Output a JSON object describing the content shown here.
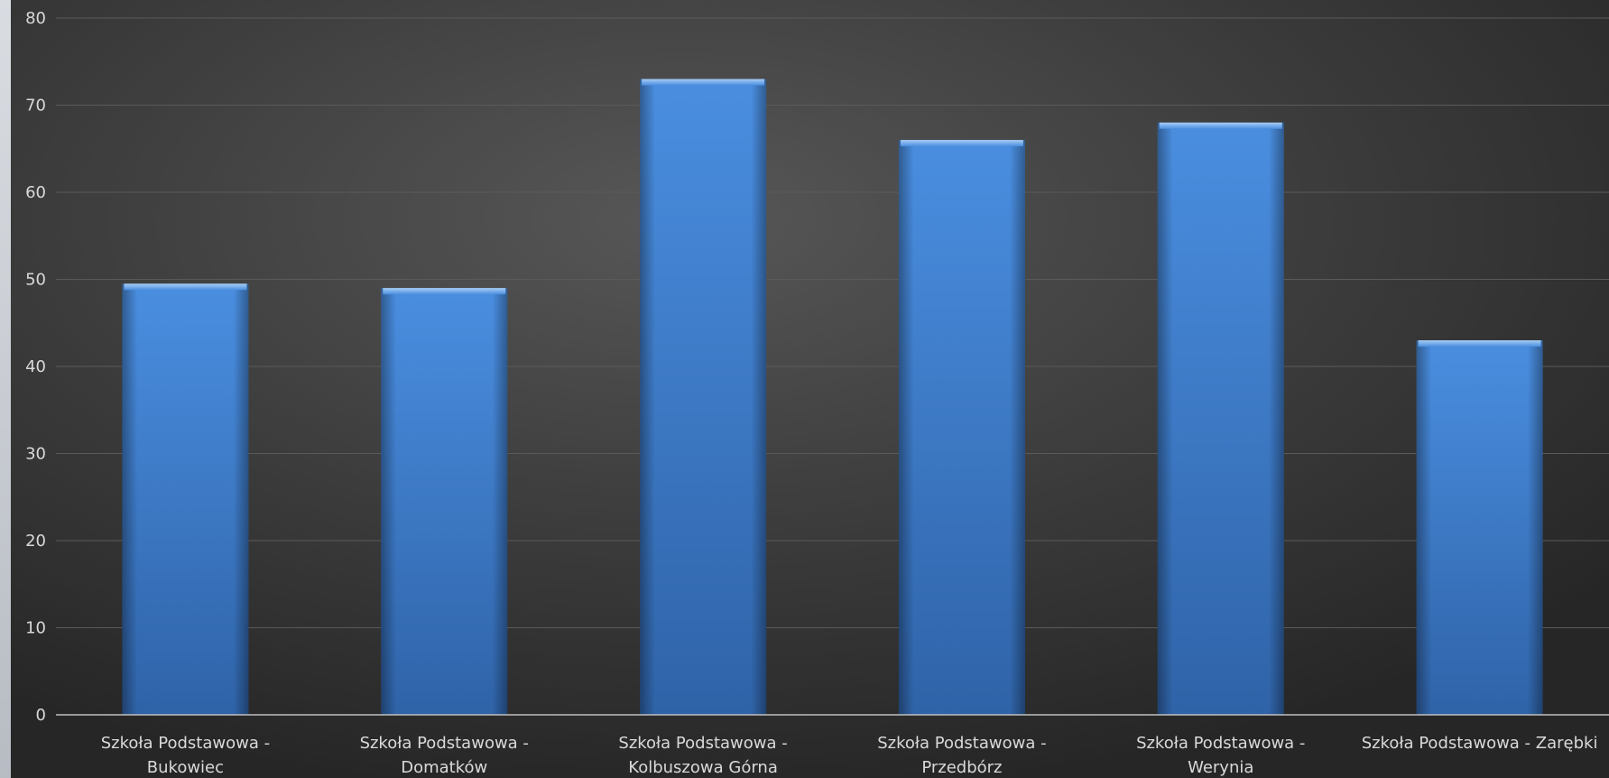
{
  "chart_data": {
    "type": "bar",
    "title": "",
    "xlabel": "",
    "ylabel": "",
    "ylim": [
      0,
      80
    ],
    "yticks": [
      0,
      10,
      20,
      30,
      40,
      50,
      60,
      70,
      80
    ],
    "grid": true,
    "legend": "none",
    "categories": [
      [
        "Szkoła Podstawowa -",
        "Bukowiec"
      ],
      [
        "Szkoła Podstawowa -",
        "Domatków"
      ],
      [
        "Szkoła Podstawowa -",
        "Kolbuszowa Górna"
      ],
      [
        "Szkoła Podstawowa -",
        "Przedbórz"
      ],
      [
        "Szkoła Podstawowa -",
        "Werynia"
      ],
      [
        "Szkoła Podstawowa - Zarębki"
      ]
    ],
    "values": [
      49.5,
      49,
      73,
      66,
      68,
      43
    ],
    "colors": {
      "bar": "#3f7fce",
      "bar_light": "#4a8ee0",
      "bar_dark": "#2f63a8",
      "text": "#d9d9d9",
      "grid": "#5a5a5a",
      "axis": "#bfbfbf"
    }
  }
}
